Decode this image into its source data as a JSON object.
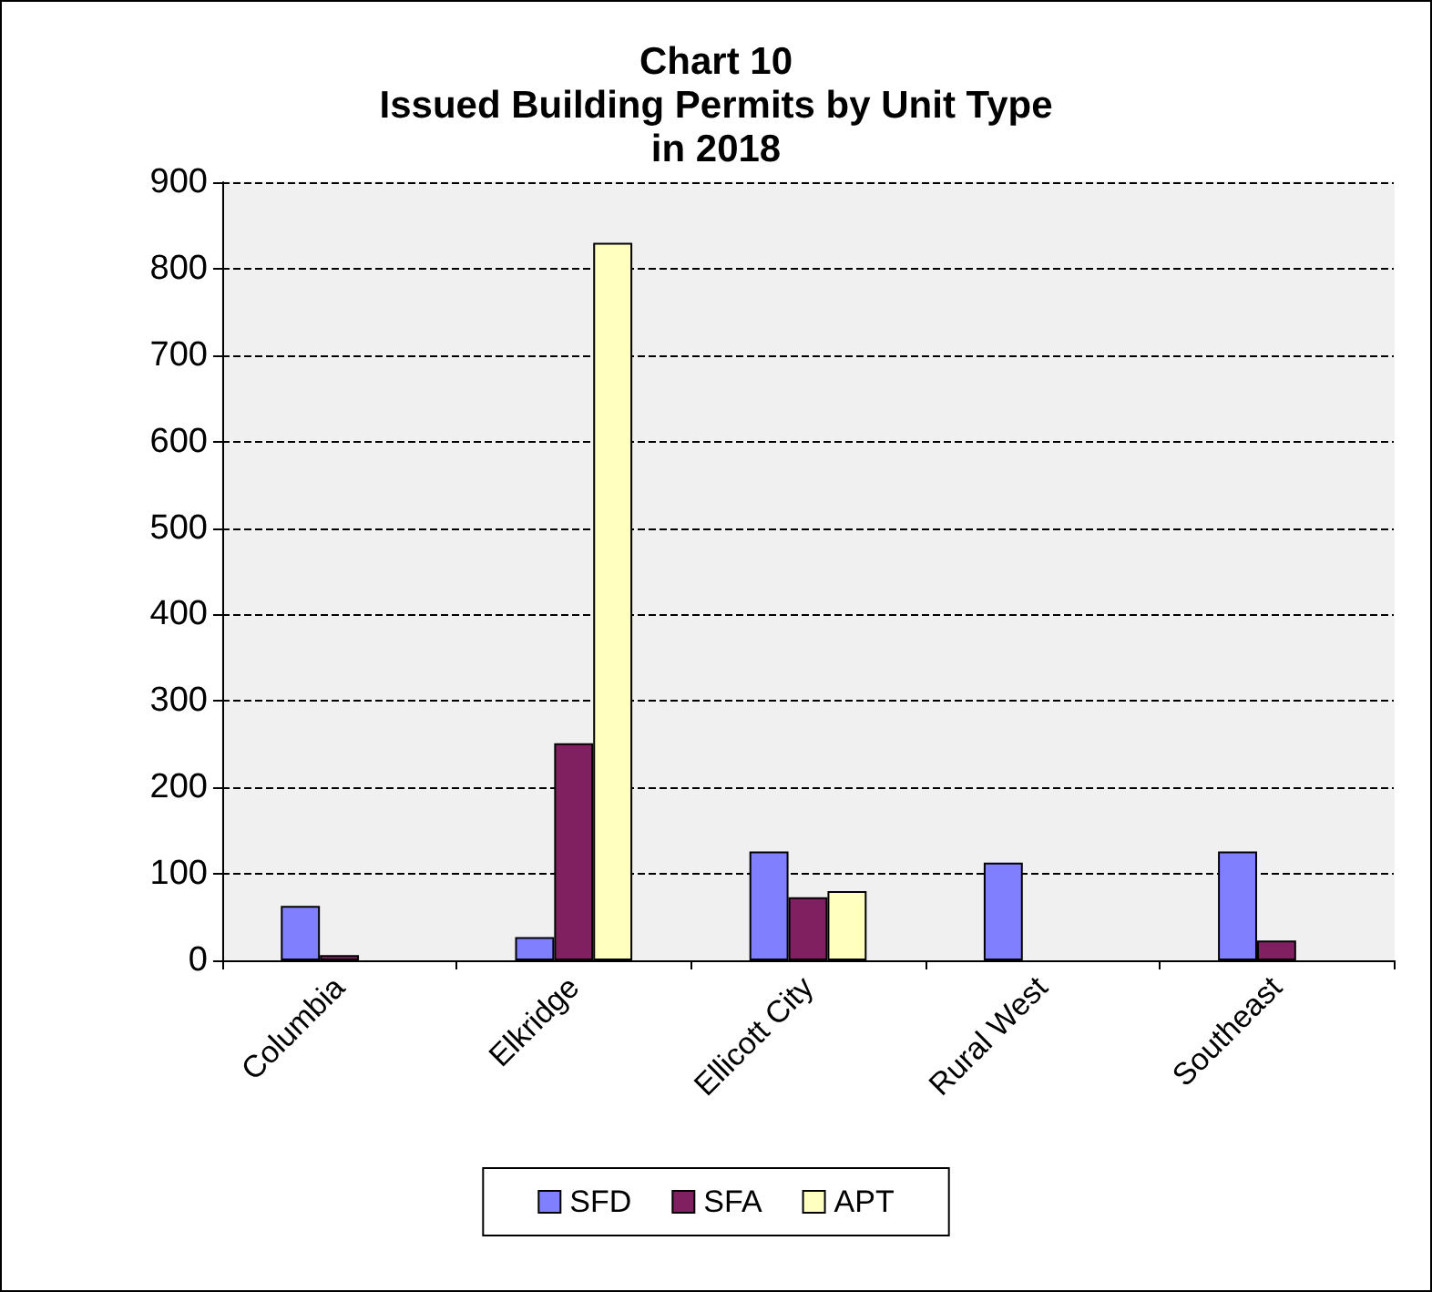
{
  "chart_data": {
    "type": "bar",
    "title": "Chart 10\nIssued Building Permits by Unit Type\nin 2018",
    "categories": [
      "Columbia",
      "Elkridge",
      "Ellicott City",
      "Rural West",
      "Southeast"
    ],
    "series": [
      {
        "name": "SFD",
        "color": "#8080ff",
        "values": [
          63,
          27,
          126,
          113,
          126
        ]
      },
      {
        "name": "SFA",
        "color": "#802060",
        "values": [
          6,
          251,
          73,
          null,
          23
        ]
      },
      {
        "name": "APT",
        "color": "#ffffc0",
        "values": [
          null,
          830,
          80,
          null,
          null
        ]
      }
    ],
    "ylim": [
      0,
      900
    ],
    "yticks": [
      0,
      100,
      200,
      300,
      400,
      500,
      600,
      700,
      800,
      900
    ],
    "grid": "y",
    "legend": "bottom"
  }
}
